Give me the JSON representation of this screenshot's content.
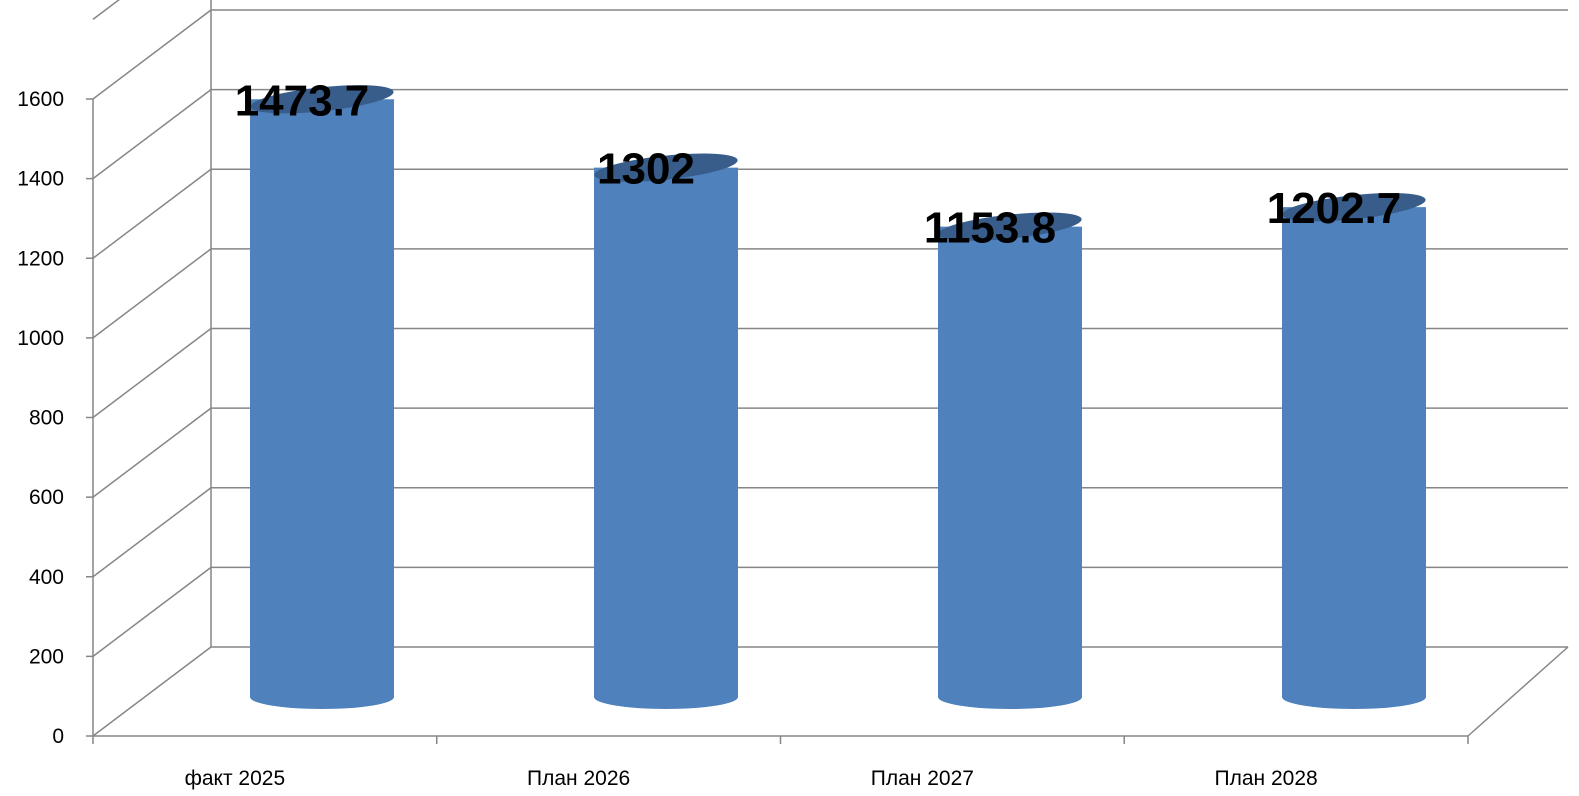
{
  "chart_data": {
    "type": "bar",
    "style": "3d-cylinder",
    "categories": [
      "факт 2025",
      "План 2026",
      "План 2027",
      "План 2028"
    ],
    "series": [
      {
        "values": [
          1473.7,
          1302,
          1153.8,
          1202.7
        ]
      }
    ],
    "data_labels": [
      "1473.7",
      "1302",
      "1153.8",
      "1202.7"
    ],
    "y_ticks": [
      "0",
      "200",
      "400",
      "600",
      "800",
      "1000",
      "1200",
      "1400",
      "1600"
    ],
    "ylim": [
      0,
      1600
    ],
    "grid": true,
    "legend": "none",
    "title": "",
    "xlabel": "",
    "ylabel": "",
    "colors": {
      "bar_body": "#4F81BD",
      "bar_top": "#385D8A",
      "grid": "#868686",
      "axis": "#868686"
    }
  }
}
